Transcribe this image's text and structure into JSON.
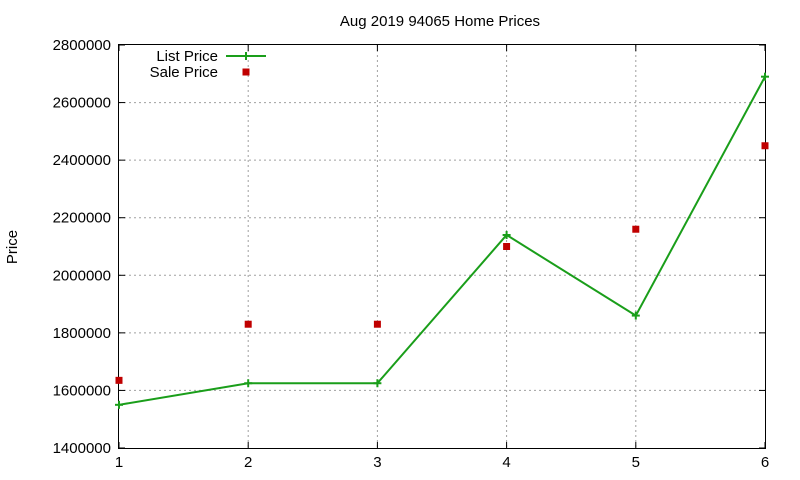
{
  "chart_data": {
    "type": "line",
    "title": "Aug 2019 94065 Home Prices",
    "xlabel": "",
    "ylabel": "Price",
    "x": [
      1,
      2,
      3,
      4,
      5,
      6
    ],
    "xlim": [
      1,
      6
    ],
    "ylim": [
      1400000,
      2800000
    ],
    "yticks": [
      1400000,
      1600000,
      1800000,
      2000000,
      2200000,
      2400000,
      2600000,
      2800000
    ],
    "grid": true,
    "legend_position": "top-left",
    "series": [
      {
        "name": "List Price",
        "style": "line-with-plus-markers",
        "color": "#1a9e1a",
        "values": [
          1550000,
          1625000,
          1625000,
          2140000,
          1860000,
          2690000
        ]
      },
      {
        "name": "Sale Price",
        "style": "square-markers",
        "color": "#c00000",
        "values": [
          1635000,
          1830000,
          1830000,
          2100000,
          2160000,
          2450000
        ]
      }
    ]
  }
}
